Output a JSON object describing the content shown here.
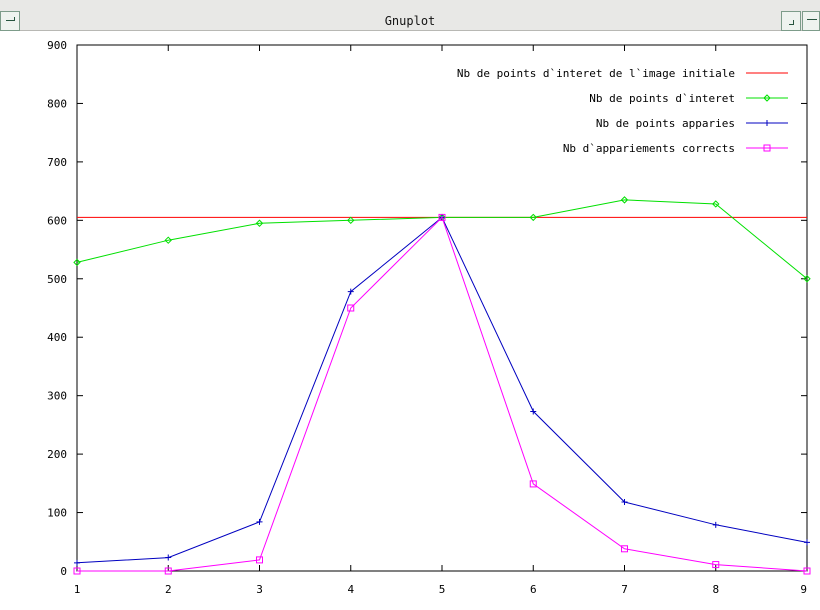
{
  "window": {
    "title": "Gnuplot",
    "controls": [
      {
        "name": "window-menu-icon"
      },
      {
        "name": "minimize-icon"
      },
      {
        "name": "maximize-icon"
      }
    ]
  },
  "chart_data": {
    "type": "line",
    "title": "",
    "xlabel": "",
    "ylabel": "",
    "xlim": [
      1,
      9
    ],
    "ylim": [
      0,
      900
    ],
    "xticks": [
      1,
      2,
      3,
      4,
      5,
      6,
      7,
      8,
      9
    ],
    "yticks": [
      0,
      100,
      200,
      300,
      400,
      500,
      600,
      700,
      800,
      900
    ],
    "grid": false,
    "legend_position": "top-right",
    "x": [
      1,
      2,
      3,
      4,
      5,
      6,
      7,
      8,
      9
    ],
    "series": [
      {
        "name": "Nb de points d`interet de l`image initiale",
        "color": "#ff0000",
        "marker": "none",
        "values": [
          605,
          605,
          605,
          605,
          605,
          605,
          605,
          605,
          605
        ]
      },
      {
        "name": "Nb de points d`interet",
        "color": "#00e000",
        "marker": "diamond",
        "values": [
          528,
          566,
          595,
          600,
          605,
          605,
          635,
          628,
          500
        ]
      },
      {
        "name": "Nb de points apparies",
        "color": "#0000c0",
        "marker": "plus",
        "values": [
          14,
          23,
          84,
          478,
          605,
          273,
          118,
          79,
          49
        ]
      },
      {
        "name": "Nb d`appariements corrects",
        "color": "#ff00ff",
        "marker": "square",
        "values": [
          0,
          0,
          19,
          450,
          605,
          149,
          38,
          11,
          0
        ]
      }
    ]
  }
}
